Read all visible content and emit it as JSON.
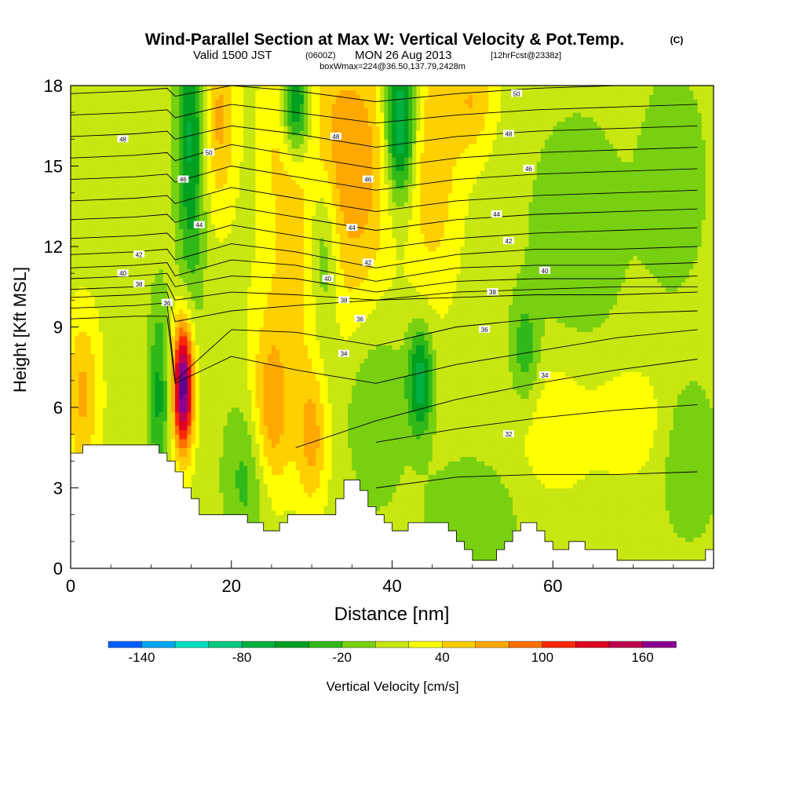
{
  "chart_data": {
    "type": "heatmap",
    "title": "Wind-Parallel Section at Max W: Vertical Velocity & Pot.Temp.",
    "title_badge": "(C)",
    "subtitle_main": "Valid 1500 JST",
    "subtitle_utc": "(0600Z)",
    "subtitle_date": "MON 26 Aug 2013",
    "subtitle_fcst": "[12hrFcst@2338z]",
    "subtitle2": "boxWmax=224@36.50,137.79,2428m",
    "xlabel": "Distance [nm]",
    "ylabel": "Height [Kft MSL]",
    "xlim": [
      0,
      80
    ],
    "ylim": [
      0,
      18
    ],
    "x_ticks": [
      "0",
      "20",
      "40",
      "60"
    ],
    "y_ticks": [
      "0",
      "3",
      "6",
      "9",
      "12",
      "15",
      "18"
    ],
    "colorbar_label": "Vertical Velocity [cm/s]",
    "colorbar_tick_labels": [
      "-140",
      "-80",
      "-20",
      "40",
      "100",
      "160"
    ],
    "colorbar_levels": [
      -160,
      -140,
      -120,
      -100,
      -80,
      -60,
      -40,
      -20,
      0,
      20,
      40,
      60,
      80,
      100,
      120,
      140,
      160,
      180
    ],
    "colorbar_colors": [
      "#0000ff",
      "#0060ff",
      "#00a8f0",
      "#00e0c0",
      "#00c880",
      "#00b040",
      "#00a020",
      "#30b818",
      "#78d010",
      "#c8e610",
      "#ffff00",
      "#ffd000",
      "#ffa800",
      "#ff7000",
      "#ff2800",
      "#e00020",
      "#c00050",
      "#8c0090",
      "#600090"
    ],
    "background_w_cms": 10,
    "w_features": [
      {
        "x": 14,
        "z": 6.8,
        "sx": 0.9,
        "sz": 1.7,
        "w": 185
      },
      {
        "x": 1.5,
        "z": 6.5,
        "sx": 1.5,
        "sz": 2.2,
        "w": 55
      },
      {
        "x": 25,
        "z": 5.8,
        "sx": 1.8,
        "sz": 2.2,
        "w": 70
      },
      {
        "x": 30,
        "z": 5.0,
        "sx": 1.4,
        "sz": 1.9,
        "w": 60
      },
      {
        "x": 18.5,
        "z": 16.8,
        "sx": 1.5,
        "sz": 2.5,
        "w": 55
      },
      {
        "x": 27,
        "z": 16.0,
        "sx": 2.2,
        "sz": 3.0,
        "w": 50
      },
      {
        "x": 33,
        "z": 15.5,
        "sx": 2.5,
        "sz": 3.2,
        "w": 50
      },
      {
        "x": 37,
        "z": 14.8,
        "sx": 2.5,
        "sz": 3.5,
        "w": 45
      },
      {
        "x": 45,
        "z": 15.0,
        "sx": 2.5,
        "sz": 3.5,
        "w": 45
      },
      {
        "x": 50,
        "z": 17.5,
        "sx": 2.0,
        "sz": 1.5,
        "w": 45
      },
      {
        "x": 29,
        "z": 10.0,
        "sx": 4.0,
        "sz": 1.8,
        "w": 30
      },
      {
        "x": 60,
        "z": 5.5,
        "sx": 4.0,
        "sz": 2.0,
        "w": 25
      },
      {
        "x": 70,
        "z": 5.5,
        "sx": 3.0,
        "sz": 1.5,
        "w": 25
      },
      {
        "x": 15,
        "z": 16.0,
        "sx": 1.2,
        "sz": 4.0,
        "w": -75
      },
      {
        "x": 28,
        "z": 17.3,
        "sx": 1.3,
        "sz": 1.5,
        "w": -110
      },
      {
        "x": 41,
        "z": 16.5,
        "sx": 1.3,
        "sz": 2.0,
        "w": -110
      },
      {
        "x": 43.5,
        "z": 7.0,
        "sx": 1.1,
        "sz": 1.4,
        "w": -85
      },
      {
        "x": 11,
        "z": 6.5,
        "sx": 0.9,
        "sz": 2.5,
        "w": -55
      },
      {
        "x": 31.5,
        "z": 11.5,
        "sx": 1.3,
        "sz": 2.5,
        "w": -55
      },
      {
        "x": 56.5,
        "z": 8.0,
        "sx": 1.3,
        "sz": 1.5,
        "w": -45
      },
      {
        "x": 22,
        "z": 3.5,
        "sx": 2.0,
        "sz": 2.0,
        "w": -40
      },
      {
        "x": 38,
        "z": 6.0,
        "sx": 2.5,
        "sz": 2.5,
        "w": -30
      },
      {
        "x": 50,
        "z": 2.0,
        "sx": 4.0,
        "sz": 1.5,
        "w": -30
      },
      {
        "x": 63,
        "z": 12.5,
        "sx": 4.0,
        "sz": 3.0,
        "w": -30
      },
      {
        "x": 75,
        "z": 14.5,
        "sx": 3.0,
        "sz": 3.0,
        "w": -25
      },
      {
        "x": 77,
        "z": 4.0,
        "sx": 2.5,
        "sz": 2.0,
        "w": -30
      }
    ],
    "terrain_nm_kft": [
      [
        0,
        4.3
      ],
      [
        1.5,
        4.3
      ],
      [
        1.5,
        4.6
      ],
      [
        11,
        4.6
      ],
      [
        11,
        4.3
      ],
      [
        12,
        4.3
      ],
      [
        12,
        4.0
      ],
      [
        13,
        4.0
      ],
      [
        13,
        3.6
      ],
      [
        14,
        3.6
      ],
      [
        14,
        3.0
      ],
      [
        15,
        3.0
      ],
      [
        15,
        2.6
      ],
      [
        16,
        2.6
      ],
      [
        16,
        2.0
      ],
      [
        22,
        2.0
      ],
      [
        22,
        1.7
      ],
      [
        24,
        1.7
      ],
      [
        24,
        1.4
      ],
      [
        26,
        1.4
      ],
      [
        26,
        1.7
      ],
      [
        27,
        1.7
      ],
      [
        27,
        2.0
      ],
      [
        33,
        2.0
      ],
      [
        33,
        2.6
      ],
      [
        34,
        2.6
      ],
      [
        34,
        3.3
      ],
      [
        36,
        3.3
      ],
      [
        36,
        2.9
      ],
      [
        37,
        2.9
      ],
      [
        37,
        2.3
      ],
      [
        38,
        2.3
      ],
      [
        38,
        2.0
      ],
      [
        39,
        2.0
      ],
      [
        39,
        1.7
      ],
      [
        40,
        1.7
      ],
      [
        40,
        1.4
      ],
      [
        42,
        1.4
      ],
      [
        42,
        1.7
      ],
      [
        47,
        1.7
      ],
      [
        47,
        1.4
      ],
      [
        48,
        1.4
      ],
      [
        48,
        1.0
      ],
      [
        49,
        1.0
      ],
      [
        49,
        0.7
      ],
      [
        50,
        0.7
      ],
      [
        50,
        0.3
      ],
      [
        53,
        0.3
      ],
      [
        53,
        0.7
      ],
      [
        54,
        0.7
      ],
      [
        54,
        1.0
      ],
      [
        55,
        1.0
      ],
      [
        55,
        1.4
      ],
      [
        56,
        1.4
      ],
      [
        56,
        1.7
      ],
      [
        58,
        1.7
      ],
      [
        58,
        1.4
      ],
      [
        59,
        1.4
      ],
      [
        59,
        1.0
      ],
      [
        60,
        1.0
      ],
      [
        60,
        0.7
      ],
      [
        62,
        0.7
      ],
      [
        62,
        1.0
      ],
      [
        64,
        1.0
      ],
      [
        64,
        0.7
      ],
      [
        68,
        0.7
      ],
      [
        68,
        0.3
      ],
      [
        74,
        0.3
      ],
      [
        74,
        0.3
      ],
      [
        79,
        0.3
      ],
      [
        79,
        0.7
      ],
      [
        80,
        0.7
      ],
      [
        80,
        0
      ]
    ],
    "theta_labels": [
      "50",
      "48",
      "46",
      "44",
      "42",
      "40",
      "38",
      "36",
      "34",
      "32"
    ],
    "theta_isentropes": [
      {
        "z": [
          10.1,
          10.2,
          10.3,
          9.2,
          9.6,
          9.8,
          10.0,
          10.1,
          10.2,
          10.2,
          10.3
        ]
      },
      {
        "z": [
          10.4,
          10.5,
          10.6,
          10.0,
          10.3,
          10.2,
          10.0,
          10.3,
          10.4,
          10.5,
          10.5
        ]
      },
      {
        "z": [
          10.8,
          10.9,
          11.0,
          10.5,
          10.9,
          10.8,
          10.3,
          10.7,
          10.8,
          10.8,
          10.9
        ]
      },
      {
        "z": [
          11.2,
          11.3,
          11.4,
          10.9,
          11.5,
          11.3,
          10.7,
          11.2,
          11.3,
          11.3,
          11.4
        ]
      },
      {
        "z": [
          11.7,
          11.8,
          11.9,
          11.5,
          12.1,
          11.8,
          11.2,
          11.7,
          11.9,
          11.9,
          12.0
        ]
      },
      {
        "z": [
          12.3,
          12.4,
          12.5,
          12.2,
          12.8,
          12.4,
          11.9,
          12.3,
          12.5,
          12.6,
          12.7
        ]
      },
      {
        "z": [
          13.0,
          13.1,
          13.2,
          12.9,
          13.5,
          13.1,
          12.6,
          13.0,
          13.2,
          13.3,
          13.4
        ]
      },
      {
        "z": [
          13.7,
          13.8,
          13.9,
          13.6,
          14.2,
          13.8,
          13.3,
          13.7,
          13.9,
          14.0,
          14.1
        ]
      },
      {
        "z": [
          14.5,
          14.6,
          14.7,
          14.4,
          15.0,
          14.6,
          14.1,
          14.5,
          14.7,
          14.8,
          14.9
        ]
      },
      {
        "z": [
          15.3,
          15.4,
          15.5,
          15.2,
          15.8,
          15.4,
          14.9,
          15.3,
          15.5,
          15.6,
          15.7
        ]
      },
      {
        "z": [
          16.1,
          16.2,
          16.3,
          16.0,
          16.5,
          16.2,
          15.7,
          16.1,
          16.3,
          16.4,
          16.5
        ]
      },
      {
        "z": [
          16.9,
          17.0,
          17.1,
          16.8,
          17.3,
          17.0,
          16.6,
          16.9,
          17.1,
          17.2,
          17.3
        ]
      },
      {
        "z": [
          17.7,
          17.8,
          17.9,
          17.6,
          18.0,
          17.8,
          17.4,
          17.7,
          17.9,
          18.0,
          18.0
        ]
      },
      {
        "z": [
          9.7,
          9.8,
          9.9,
          7.0,
          8.9,
          8.8,
          8.3,
          9.0,
          9.3,
          9.5,
          9.6
        ]
      },
      {
        "z": [
          9.3,
          9.4,
          9.4,
          6.9,
          7.9,
          7.4,
          6.9,
          7.6,
          8.1,
          8.6,
          8.9
        ]
      },
      {
        "z": [
          null,
          null,
          null,
          null,
          null,
          4.5,
          5.5,
          6.3,
          6.9,
          7.4,
          7.8
        ]
      },
      {
        "z": [
          null,
          null,
          null,
          null,
          null,
          null,
          4.7,
          5.2,
          5.6,
          5.9,
          6.1
        ]
      },
      {
        "z": [
          null,
          null,
          null,
          null,
          null,
          null,
          3.0,
          3.4,
          3.5,
          3.5,
          3.6
        ]
      }
    ],
    "theta_x_nodes": [
      0,
      8,
      12,
      13,
      20,
      28,
      38,
      48,
      58,
      68,
      78
    ]
  }
}
